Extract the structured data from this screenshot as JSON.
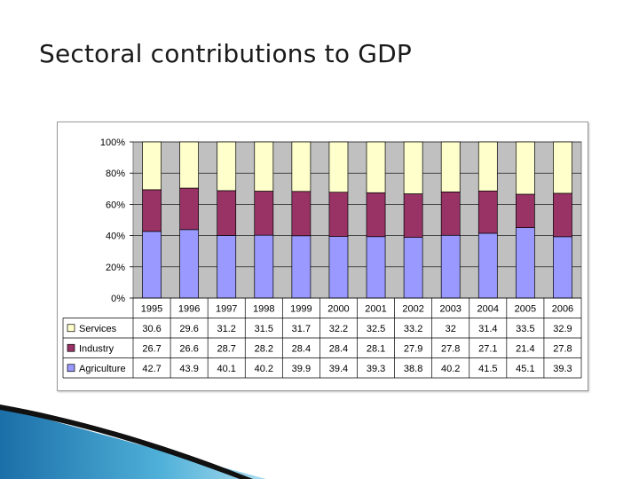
{
  "slide": {
    "title": "Sectoral contributions to GDP"
  },
  "chart_data": {
    "type": "bar",
    "stacked": true,
    "normalized_percent": true,
    "categories": [
      "1995",
      "1996",
      "1997",
      "1998",
      "1999",
      "2000",
      "2001",
      "2002",
      "2003",
      "2004",
      "2005",
      "2006"
    ],
    "series": [
      {
        "name": "Agriculture",
        "color": "#9999ff",
        "values": [
          "42.7",
          "43.9",
          "40.1",
          "40.2",
          "39.9",
          "39.4",
          "39.3",
          "38.8",
          "40.2",
          "41.5",
          "45.1",
          "39.3"
        ]
      },
      {
        "name": "Industry",
        "color": "#993366",
        "values": [
          "26.7",
          "26.6",
          "28.7",
          "28.2",
          "28.4",
          "28.4",
          "28.1",
          "27.9",
          "27.8",
          "27.1",
          "21.4",
          "27.8"
        ]
      },
      {
        "name": "Services",
        "color": "#ffffcc",
        "values": [
          "30.6",
          "29.6",
          "31.2",
          "31.5",
          "31.7",
          "32.2",
          "32.5",
          "33.2",
          "32",
          "31.4",
          "33.5",
          "32.9"
        ]
      }
    ],
    "table_row_order": [
      "Services",
      "Industry",
      "Agriculture"
    ],
    "y_ticks": [
      "0%",
      "20%",
      "40%",
      "60%",
      "80%",
      "100%"
    ],
    "ylim": [
      0,
      100
    ],
    "plot_background": "#c0c0c0",
    "legend": "data-table"
  }
}
